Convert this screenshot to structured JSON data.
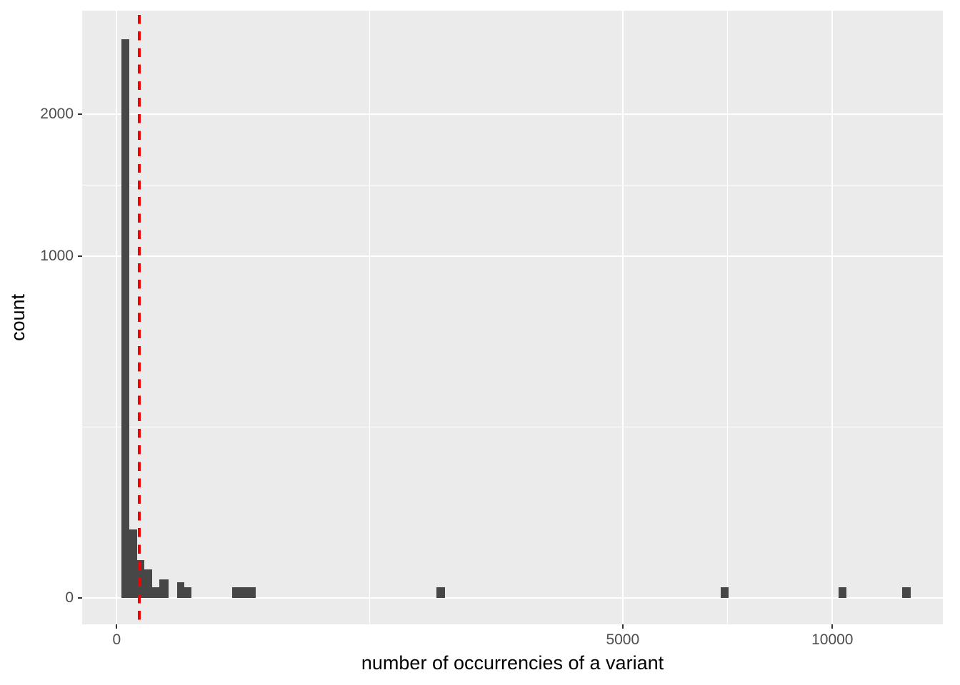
{
  "chart_data": {
    "type": "bar",
    "subtype": "histogram",
    "title": "",
    "xlabel": "number of occurrencies of a variant",
    "ylabel": "count",
    "x_scale": "sqrt",
    "y_scale": "sqrt",
    "grid": true,
    "legend": "none",
    "x_ticks": [
      {
        "value": 0,
        "label": "0"
      },
      {
        "value": 5000,
        "label": "5000"
      },
      {
        "value": 10000,
        "label": "10000"
      }
    ],
    "y_ticks": [
      {
        "value": 0,
        "label": "0"
      },
      {
        "value": 1000,
        "label": "1000"
      },
      {
        "value": 2000,
        "label": "2000"
      }
    ],
    "xlim": [
      -25,
      13400
    ],
    "ylim": [
      0,
      2950
    ],
    "bars": [
      {
        "x0": 0.5,
        "x1": 3.2,
        "count": 2670
      },
      {
        "x0": 3.2,
        "x1": 8.4,
        "count": 40
      },
      {
        "x0": 8.4,
        "x1": 15.2,
        "count": 12
      },
      {
        "x0": 15.2,
        "x1": 25,
        "count": 7
      },
      {
        "x0": 25,
        "x1": 36,
        "count": 1
      },
      {
        "x0": 36,
        "x1": 53,
        "count": 3
      },
      {
        "x0": 71,
        "x1": 90,
        "count": 2
      },
      {
        "x0": 90,
        "x1": 110,
        "count": 1
      },
      {
        "x0": 259,
        "x1": 376,
        "count": 1
      },
      {
        "x0": 1998,
        "x1": 2107,
        "count": 1
      },
      {
        "x0": 7123,
        "x1": 7310,
        "count": 1
      },
      {
        "x0": 10181,
        "x1": 10404,
        "count": 1
      },
      {
        "x0": 12056,
        "x1": 12299,
        "count": 1
      }
    ],
    "vline": {
      "x": 10,
      "color": "#F40000",
      "style": "dashed"
    },
    "colors": {
      "bar": "#474747",
      "panel_bg": "#EBEBEB",
      "grid": "#FFFFFF",
      "tick_text": "#4D4D4D",
      "axis_title": "#000000",
      "tick_mark": "#333333",
      "outer_bg": "#FFFFFF"
    }
  }
}
